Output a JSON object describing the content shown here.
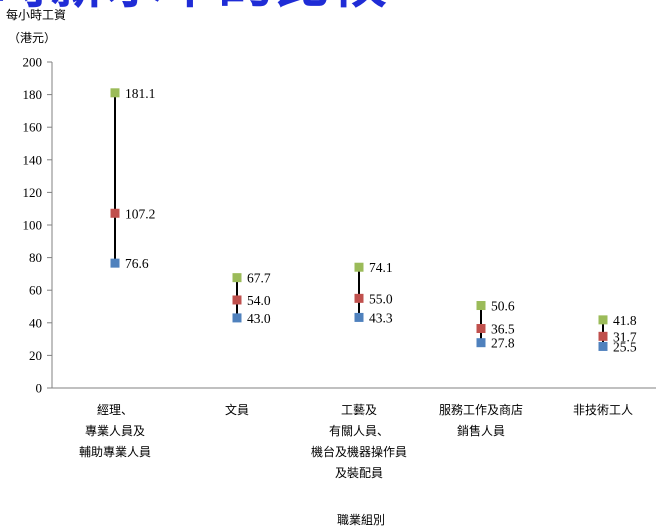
{
  "banner_text": "時薪水平的比較",
  "chart_data": {
    "type": "range",
    "title": "",
    "ylabel_lines": [
      "每小時工資",
      "（港元）"
    ],
    "xlabel": "職業組別",
    "ylim": [
      0,
      200
    ],
    "yticks": [
      0,
      20,
      40,
      60,
      80,
      100,
      120,
      140,
      160,
      180,
      200
    ],
    "categories": [
      [
        "經理、",
        "專業人員及",
        "輔助專業人員"
      ],
      [
        "文員"
      ],
      [
        "工藝及",
        "有關人員、",
        "機台及機器操作員",
        "及裝配員"
      ],
      [
        "服務工作及商店",
        "銷售人員"
      ],
      [
        "非技術工人"
      ]
    ],
    "series": [
      {
        "color": "#9bbb59",
        "values": [
          181.1,
          67.7,
          74.1,
          50.6,
          41.8
        ]
      },
      {
        "color": "#c0504d",
        "values": [
          107.2,
          54.0,
          55.0,
          36.5,
          31.7
        ]
      },
      {
        "color": "#4f81bd",
        "values": [
          76.6,
          43.0,
          43.3,
          27.8,
          25.5
        ]
      }
    ],
    "value_labels": [
      [
        "181.1",
        "67.7",
        "74.1",
        "50.6",
        "41.8"
      ],
      [
        "107.2",
        "54.0",
        "55.0",
        "36.5",
        "31.7"
      ],
      [
        "76.6",
        "43.0",
        "43.3",
        "27.8",
        "25.5"
      ]
    ],
    "grid": false,
    "legend": "none"
  }
}
